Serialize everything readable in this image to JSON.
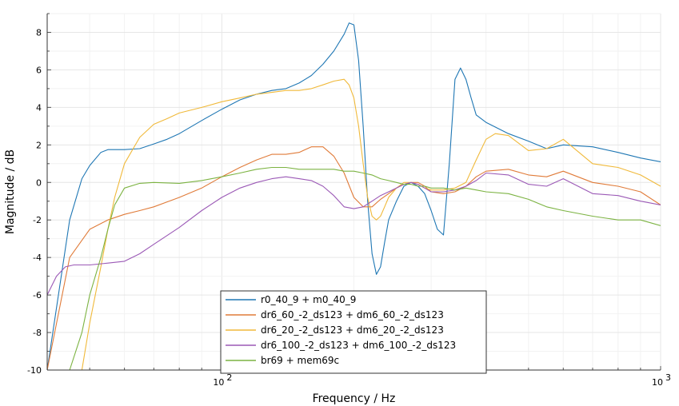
{
  "chart_data": {
    "type": "line",
    "title": "",
    "xlabel": "Frequency / Hz",
    "ylabel": "Magnitude / dB",
    "xscale": "log",
    "xlim": [
      40,
      1000
    ],
    "ylim": [
      -10,
      9
    ],
    "xtick_major": [
      100,
      1000
    ],
    "xtick_major_labels": [
      {
        "base": "10",
        "exp": "2"
      },
      {
        "base": "10",
        "exp": "3"
      }
    ],
    "yticks": [
      -10,
      -8,
      -6,
      -4,
      -2,
      0,
      2,
      4,
      6,
      8
    ],
    "ytick_labels": [
      "-10",
      "-8",
      "-6",
      "-4",
      "-2",
      "0",
      "2",
      "4",
      "6",
      "8"
    ],
    "grid": true,
    "legend_position": "bottom-center",
    "series": [
      {
        "name": "r0_40_9 + m0_40_9",
        "color": "#1f77b4",
        "x": [
          40,
          45,
          48,
          50,
          53,
          55,
          57,
          60,
          65,
          70,
          75,
          80,
          90,
          100,
          110,
          120,
          130,
          140,
          150,
          160,
          170,
          180,
          190,
          195,
          200,
          205,
          210,
          215,
          220,
          225,
          230,
          235,
          240,
          250,
          260,
          270,
          280,
          290,
          300,
          310,
          320,
          330,
          340,
          350,
          360,
          370,
          380,
          400,
          450,
          500,
          550,
          600,
          700,
          800,
          900,
          1000
        ],
        "y": [
          -10,
          -2,
          0.2,
          0.9,
          1.6,
          1.75,
          1.75,
          1.75,
          1.8,
          2.05,
          2.3,
          2.6,
          3.3,
          3.9,
          4.4,
          4.7,
          4.9,
          5.0,
          5.3,
          5.7,
          6.3,
          7.0,
          7.9,
          8.5,
          8.4,
          6.5,
          3.0,
          -1.0,
          -3.8,
          -4.9,
          -4.5,
          -3.2,
          -2.0,
          -1.0,
          -0.2,
          0.0,
          -0.2,
          -0.6,
          -1.5,
          -2.5,
          -2.8,
          1.0,
          5.5,
          6.1,
          5.5,
          4.5,
          3.6,
          3.2,
          2.6,
          2.2,
          1.8,
          2.0,
          1.9,
          1.6,
          1.3,
          1.1
        ]
      },
      {
        "name": "dr6_60_-2_ds123 + dm6_60_-2_ds123",
        "color": "#e07b39",
        "x": [
          40,
          45,
          50,
          55,
          60,
          65,
          70,
          80,
          90,
          100,
          110,
          120,
          130,
          140,
          150,
          160,
          170,
          180,
          190,
          200,
          210,
          220,
          230,
          240,
          250,
          260,
          270,
          280,
          290,
          300,
          320,
          340,
          360,
          380,
          400,
          450,
          500,
          550,
          600,
          700,
          800,
          900,
          1000
        ],
        "y": [
          -10,
          -4.0,
          -2.5,
          -2.0,
          -1.7,
          -1.5,
          -1.3,
          -0.8,
          -0.3,
          0.3,
          0.8,
          1.2,
          1.5,
          1.5,
          1.6,
          1.9,
          1.9,
          1.4,
          0.5,
          -0.8,
          -1.3,
          -1.3,
          -0.9,
          -0.6,
          -0.3,
          -0.1,
          0.0,
          0.0,
          -0.2,
          -0.5,
          -0.6,
          -0.5,
          -0.2,
          0.3,
          0.6,
          0.7,
          0.4,
          0.3,
          0.6,
          0.0,
          -0.2,
          -0.5,
          -1.2
        ]
      },
      {
        "name": "dr6_20_-2_ds123 + dm6_20_-2_ds123",
        "color": "#f0b93a",
        "x": [
          48,
          50,
          53,
          55,
          57,
          60,
          65,
          70,
          75,
          80,
          90,
          100,
          110,
          120,
          130,
          140,
          150,
          160,
          170,
          180,
          190,
          195,
          200,
          205,
          210,
          215,
          220,
          225,
          230,
          235,
          240,
          250,
          260,
          270,
          280,
          290,
          300,
          320,
          340,
          360,
          380,
          400,
          420,
          450,
          500,
          550,
          600,
          700,
          800,
          900,
          1000
        ],
        "y": [
          -10,
          -7.5,
          -4.5,
          -2.5,
          -0.8,
          1.0,
          2.4,
          3.1,
          3.4,
          3.7,
          4.0,
          4.3,
          4.5,
          4.7,
          4.8,
          4.9,
          4.9,
          5.0,
          5.2,
          5.4,
          5.5,
          5.2,
          4.5,
          3.0,
          1.0,
          -0.8,
          -1.8,
          -2.0,
          -1.8,
          -1.3,
          -0.8,
          -0.3,
          0.0,
          0.0,
          -0.1,
          -0.3,
          -0.4,
          -0.4,
          -0.3,
          0.0,
          1.2,
          2.3,
          2.6,
          2.5,
          1.7,
          1.8,
          2.3,
          1.0,
          0.8,
          0.4,
          -0.2
        ]
      },
      {
        "name": "dr6_100_-2_ds123 + dm6_100_-2_ds123",
        "color": "#9b59b6",
        "x": [
          40,
          42,
          44,
          46,
          50,
          55,
          60,
          65,
          70,
          80,
          90,
          100,
          110,
          120,
          130,
          140,
          150,
          160,
          170,
          180,
          190,
          200,
          210,
          220,
          230,
          240,
          250,
          260,
          270,
          280,
          290,
          300,
          320,
          340,
          360,
          380,
          400,
          450,
          500,
          550,
          600,
          700,
          800,
          900,
          1000
        ],
        "y": [
          -6.0,
          -5.0,
          -4.5,
          -4.4,
          -4.4,
          -4.3,
          -4.2,
          -3.8,
          -3.3,
          -2.4,
          -1.5,
          -0.8,
          -0.3,
          0.0,
          0.2,
          0.3,
          0.2,
          0.1,
          -0.2,
          -0.7,
          -1.3,
          -1.4,
          -1.3,
          -1.0,
          -0.7,
          -0.5,
          -0.3,
          -0.1,
          0.0,
          -0.1,
          -0.3,
          -0.5,
          -0.5,
          -0.4,
          -0.2,
          0.1,
          0.5,
          0.4,
          -0.1,
          -0.2,
          0.2,
          -0.6,
          -0.7,
          -1.0,
          -1.2
        ]
      },
      {
        "name": "br69 + mem69c",
        "color": "#7cb342",
        "x": [
          45,
          48,
          50,
          53,
          55,
          57,
          60,
          65,
          70,
          80,
          90,
          100,
          110,
          120,
          130,
          140,
          150,
          160,
          170,
          180,
          190,
          200,
          210,
          220,
          230,
          240,
          250,
          260,
          270,
          280,
          290,
          300,
          320,
          340,
          360,
          380,
          400,
          450,
          500,
          550,
          600,
          700,
          800,
          900,
          1000
        ],
        "y": [
          -10,
          -8.0,
          -6.0,
          -4.0,
          -2.5,
          -1.2,
          -0.3,
          -0.05,
          0.0,
          -0.05,
          0.1,
          0.3,
          0.5,
          0.7,
          0.8,
          0.8,
          0.7,
          0.7,
          0.7,
          0.7,
          0.6,
          0.6,
          0.5,
          0.4,
          0.2,
          0.1,
          0.0,
          -0.1,
          -0.1,
          -0.2,
          -0.2,
          -0.3,
          -0.3,
          -0.4,
          -0.3,
          -0.4,
          -0.5,
          -0.6,
          -0.9,
          -1.3,
          -1.5,
          -1.8,
          -2.0,
          -2.0,
          -2.3
        ]
      }
    ]
  }
}
